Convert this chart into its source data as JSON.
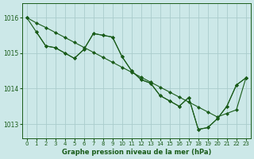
{
  "bg_color": "#cce8e8",
  "grid_color": "#aacccc",
  "line_color": "#1a5c1a",
  "marker_color": "#1a5c1a",
  "xlabel": "Graphe pression niveau de la mer (hPa)",
  "xlabel_color": "#1a5c1a",
  "tick_color": "#1a5c1a",
  "xlim": [
    -0.5,
    23.5
  ],
  "ylim": [
    1012.6,
    1016.4
  ],
  "yticks": [
    1013,
    1014,
    1015,
    1016
  ],
  "xticks": [
    0,
    1,
    2,
    3,
    4,
    5,
    6,
    7,
    8,
    9,
    10,
    11,
    12,
    13,
    14,
    15,
    16,
    17,
    18,
    19,
    20,
    21,
    22,
    23
  ],
  "series1_x": [
    0,
    1,
    2,
    3,
    4,
    5,
    6,
    7,
    8,
    9,
    10,
    11,
    12,
    13,
    14,
    15,
    16,
    17,
    18,
    19,
    20,
    21,
    22,
    23
  ],
  "series1_y": [
    1016.0,
    1015.85,
    1015.72,
    1015.58,
    1015.44,
    1015.3,
    1015.16,
    1015.02,
    1014.88,
    1014.74,
    1014.6,
    1014.46,
    1014.32,
    1014.18,
    1014.04,
    1013.9,
    1013.76,
    1013.62,
    1013.48,
    1013.34,
    1013.2,
    1013.3,
    1013.4,
    1014.3
  ],
  "series2_x": [
    0,
    1,
    2,
    3,
    4,
    5,
    6,
    7,
    8,
    9,
    10,
    11,
    12,
    13,
    14,
    15,
    16,
    17,
    18,
    19,
    20,
    21,
    22,
    23
  ],
  "series2_y": [
    1016.0,
    1015.6,
    1015.2,
    1015.15,
    1015.0,
    1014.85,
    1015.1,
    1015.55,
    1015.5,
    1015.45,
    1014.9,
    1014.5,
    1014.25,
    1014.15,
    1013.8,
    1013.65,
    1013.5,
    1013.75,
    1012.85,
    1012.9,
    1013.15,
    1013.5,
    1014.1,
    1014.3
  ],
  "series3_x": [
    1,
    2,
    3,
    4,
    5,
    6,
    7,
    8,
    9,
    10,
    11,
    12,
    13,
    14,
    15,
    16,
    17,
    18,
    19,
    20,
    21,
    22,
    23
  ],
  "series3_y": [
    1015.6,
    1015.2,
    1015.15,
    1015.0,
    1014.85,
    1015.1,
    1015.55,
    1015.5,
    1015.45,
    1014.9,
    1014.5,
    1014.25,
    1014.15,
    1013.8,
    1013.65,
    1013.5,
    1013.75,
    1012.85,
    1012.9,
    1013.15,
    1013.5,
    1014.1,
    1014.3
  ]
}
